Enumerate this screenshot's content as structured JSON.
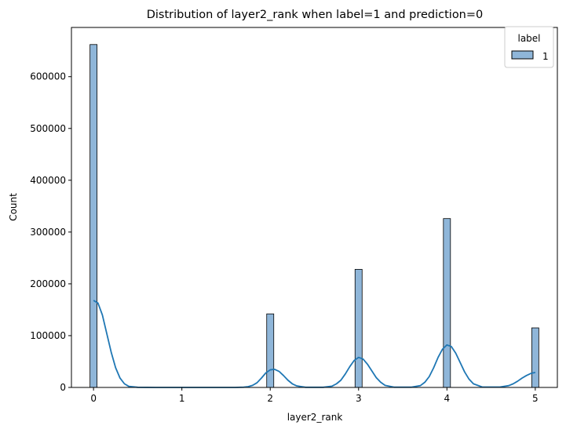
{
  "chart_data": {
    "type": "bar",
    "title": "Distribution of layer2_rank when label=1 and prediction=0",
    "xlabel": "layer2_rank",
    "ylabel": "Count",
    "xlim": [
      -0.25,
      5.25
    ],
    "ylim": [
      0,
      695000
    ],
    "xticks": [
      0,
      1,
      2,
      3,
      4,
      5
    ],
    "xtick_labels": [
      "0",
      "1",
      "2",
      "3",
      "4",
      "5"
    ],
    "yticks": [
      0,
      100000,
      200000,
      300000,
      400000,
      500000,
      600000
    ],
    "ytick_labels": [
      "0",
      "100000",
      "200000",
      "300000",
      "400000",
      "500000",
      "600000"
    ],
    "grid": false,
    "legend": {
      "title": "label",
      "entries": [
        "1"
      ],
      "placement": "top-right"
    },
    "series": [
      {
        "name": "1",
        "color": "#1f77b4",
        "bar_fill": "#8fb6d9",
        "bins": [
          {
            "x": 0,
            "count": 662000
          },
          {
            "x": 2,
            "count": 142000
          },
          {
            "x": 3,
            "count": 228000
          },
          {
            "x": 4,
            "count": 326000
          },
          {
            "x": 5,
            "count": 115000
          }
        ],
        "bin_width": 0.08,
        "kde": {
          "x": [
            0,
            0.05,
            0.1,
            0.15,
            0.2,
            0.25,
            0.3,
            0.35,
            0.4,
            0.5,
            0.7,
            1.0,
            1.4,
            1.6,
            1.7,
            1.75,
            1.8,
            1.85,
            1.9,
            1.95,
            2.0,
            2.05,
            2.1,
            2.15,
            2.2,
            2.25,
            2.3,
            2.4,
            2.6,
            2.7,
            2.75,
            2.8,
            2.85,
            2.9,
            2.95,
            3.0,
            3.05,
            3.1,
            3.15,
            3.2,
            3.25,
            3.3,
            3.4,
            3.6,
            3.7,
            3.75,
            3.8,
            3.85,
            3.9,
            3.95,
            4.0,
            4.05,
            4.1,
            4.15,
            4.2,
            4.25,
            4.3,
            4.4,
            4.6,
            4.7,
            4.75,
            4.8,
            4.85,
            4.9,
            4.95,
            5.0
          ],
          "y": [
            168000,
            163000,
            140000,
            104000,
            68000,
            38000,
            18000,
            7000,
            2000,
            300,
            0,
            0,
            0,
            0,
            500,
            1500,
            4000,
            9000,
            18000,
            28000,
            34000,
            35000,
            31000,
            23000,
            14000,
            7000,
            3000,
            300,
            300,
            2500,
            7000,
            14000,
            26000,
            40000,
            52000,
            58000,
            55000,
            45000,
            32000,
            19000,
            10000,
            4000,
            500,
            500,
            3500,
            10000,
            21000,
            38000,
            58000,
            74000,
            82000,
            79000,
            66000,
            48000,
            30000,
            16000,
            7000,
            800,
            800,
            3500,
            7000,
            12000,
            18000,
            23000,
            27000,
            29000
          ]
        }
      }
    ]
  }
}
